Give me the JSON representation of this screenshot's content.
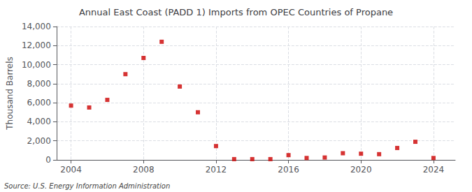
{
  "chart_data": {
    "type": "scatter",
    "title": "Annual East Coast (PADD 1) Imports from OPEC Countries of Propane",
    "ylabel": "Thousand Barrels",
    "annotations": [
      "Source: U.S. Energy Information Administration"
    ],
    "x": [
      2004,
      2005,
      2006,
      2007,
      2008,
      2009,
      2010,
      2011,
      2012,
      2013,
      2014,
      2015,
      2016,
      2017,
      2018,
      2019,
      2020,
      2021,
      2022,
      2023,
      2024
    ],
    "values": [
      5700,
      5500,
      6300,
      9000,
      10700,
      12400,
      7700,
      5000,
      1450,
      80,
      80,
      80,
      500,
      200,
      250,
      700,
      650,
      600,
      1250,
      1900,
      200
    ],
    "color": "#cc0000",
    "marker": "square",
    "xlim": [
      2003.2,
      2025.2
    ],
    "xticks": [
      2004,
      2008,
      2012,
      2016,
      2020,
      2024
    ],
    "ylim": [
      0,
      14000
    ],
    "yticks": [
      0,
      {
        "value": 2000,
        "label": "2,000"
      },
      {
        "value": 4000,
        "label": "4,000"
      },
      {
        "value": 6000,
        "label": "6,000"
      },
      {
        "value": 8000,
        "label": "8,000"
      },
      {
        "value": 10000,
        "label": "10,000"
      },
      {
        "value": 12000,
        "label": "12,000"
      },
      {
        "value": 14000,
        "label": "14,000"
      }
    ],
    "grid": true
  }
}
